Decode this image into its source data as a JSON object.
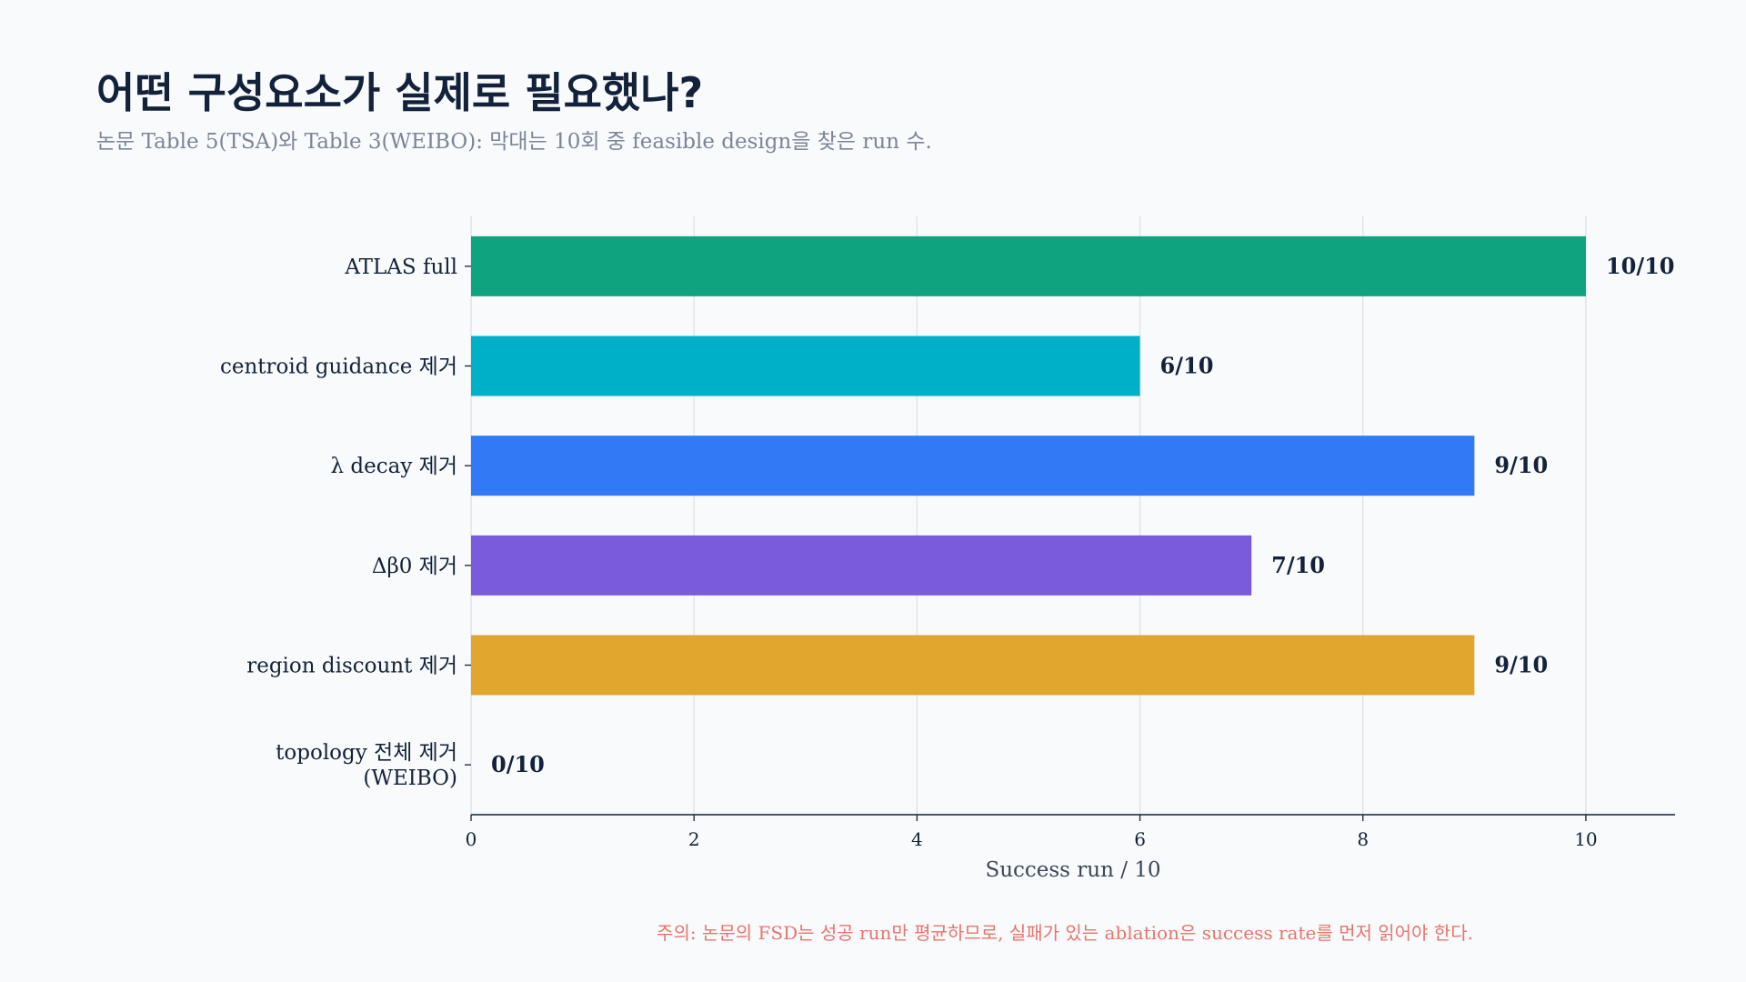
{
  "header": {
    "title": "어떤 구성요소가 실제로 필요했나?",
    "subtitle": "논문 Table 5(TSA)와 Table 3(WEIBO): 막대는 10회 중 feasible design을 찾은 run 수."
  },
  "footnote": "주의: 논문의 FSD는 성공 run만 평균하므로, 실패가 있는 ablation은 success rate를 먼저 읽어야 한다.",
  "chart_data": {
    "type": "bar",
    "orientation": "horizontal",
    "categories": [
      [
        "ATLAS full"
      ],
      [
        "centroid guidance 제거"
      ],
      [
        "λ decay 제거"
      ],
      [
        "Δβ0 제거"
      ],
      [
        "region discount 제거"
      ],
      [
        "topology 전체 제거",
        "(WEIBO)"
      ]
    ],
    "values": [
      10,
      6,
      9,
      7,
      9,
      0
    ],
    "value_labels": [
      "10/10",
      "6/10",
      "9/10",
      "7/10",
      "9/10",
      "0/10"
    ],
    "colors": [
      "#10a37f",
      "#00b0c8",
      "#3179f5",
      "#7a5bdb",
      "#e0a62e",
      "#9ca3af"
    ],
    "xlabel": "Success run / 10",
    "xticks": [
      0,
      2,
      4,
      6,
      8,
      10
    ],
    "xlim": [
      0,
      10.8
    ],
    "grid": "vertical"
  }
}
